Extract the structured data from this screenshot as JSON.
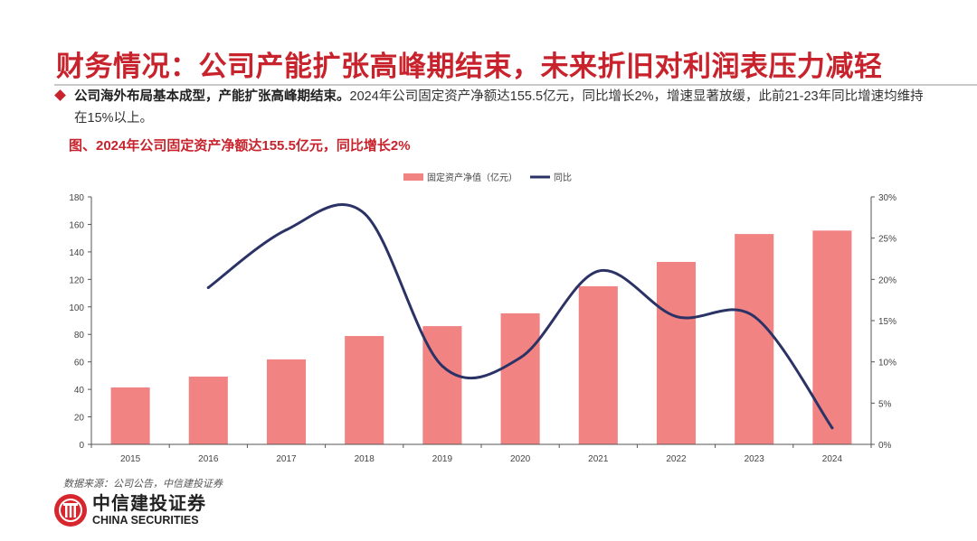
{
  "header": {
    "title": "财务情况：公司产能扩张高峰期结束，未来折旧对利润表压力减轻"
  },
  "bullet": {
    "bold": "公司海外布局基本成型，产能扩张高峰期结束。",
    "text": "2024年公司固定资产净额达155.5亿元，同比增长2%，增速显著放缓，此前21-23年同比增速均维持在15%以上。"
  },
  "figure_caption": "图、2024年公司固定资产净额达155.5亿元，同比增长2%",
  "footer": {
    "source": "数据来源：公司公告，中信建投证券",
    "logo_cn": "中信建投证券",
    "logo_en": "CHINA SECURITIES"
  },
  "colors": {
    "title": "#c8232c",
    "bar": "#f28383",
    "line": "#2b3366"
  },
  "chart_data": {
    "type": "bar+line",
    "categories": [
      "2015",
      "2016",
      "2017",
      "2018",
      "2019",
      "2020",
      "2021",
      "2022",
      "2023",
      "2024"
    ],
    "series": [
      {
        "name": "固定资产净值（亿元）",
        "type": "bar",
        "axis": "left",
        "values": [
          41.4,
          49.3,
          61.8,
          78.8,
          86.0,
          95.3,
          115.0,
          132.7,
          153.0,
          155.5
        ]
      },
      {
        "name": "同比",
        "type": "line",
        "axis": "right",
        "smooth": true,
        "values": [
          null,
          19.0,
          26.0,
          28.0,
          9.5,
          10.5,
          21.0,
          15.5,
          15.5,
          2.0
        ]
      }
    ],
    "y_left": {
      "range": [
        0,
        180
      ],
      "ticks": [
        "0",
        "20",
        "40",
        "60",
        "80",
        "100",
        "120",
        "140",
        "160",
        "180"
      ]
    },
    "y_right": {
      "range": [
        0,
        30
      ],
      "ticks": [
        "0%",
        "5%",
        "10%",
        "15%",
        "20%",
        "25%",
        "30%"
      ]
    },
    "legend": "top-center",
    "grid": false
  }
}
